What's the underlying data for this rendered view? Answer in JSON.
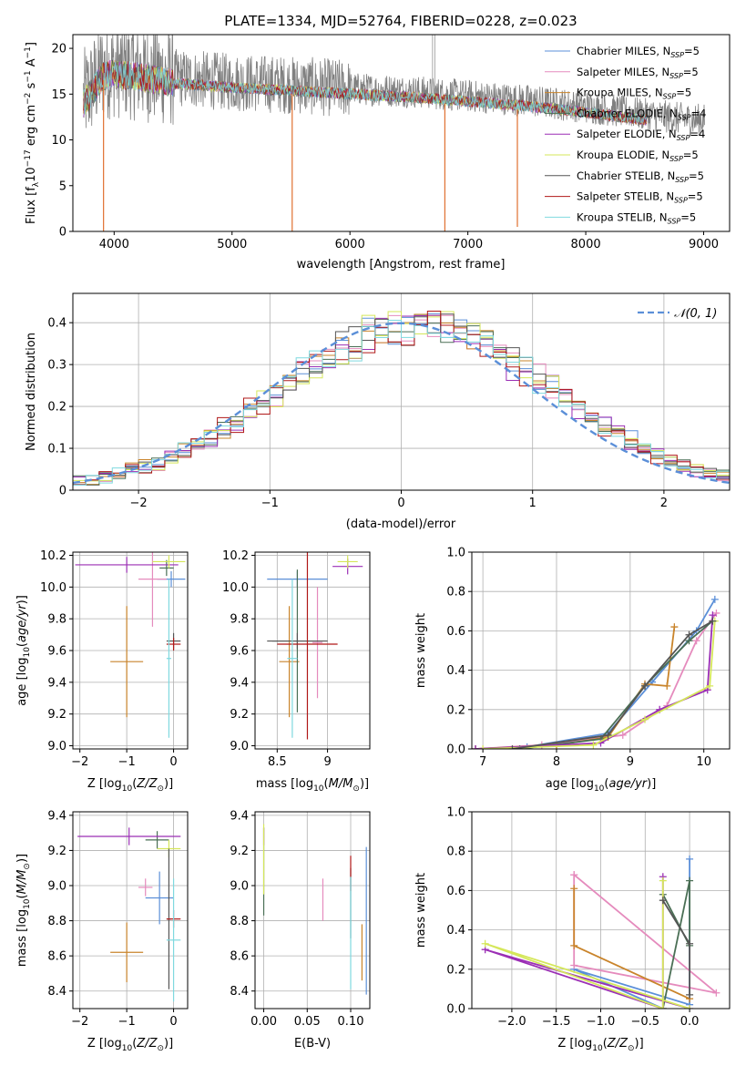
{
  "figure": {
    "title": "PLATE=1334, MJD=52764, FIBERID=0228, z=0.023",
    "models": [
      {
        "label": "Chabrier MILES, N",
        "sub": "SSP",
        "tail": "=5",
        "color": "#5b8fd8"
      },
      {
        "label": "Salpeter MILES, N",
        "sub": "SSP",
        "tail": "=5",
        "color": "#e58bbd"
      },
      {
        "label": "Kroupa MILES, N",
        "sub": "SSP",
        "tail": "=5",
        "color": "#c9842b"
      },
      {
        "label": "Chabrier ELODIE, N",
        "sub": "SSP",
        "tail": "=4",
        "color": "#4a6f55"
      },
      {
        "label": "Salpeter ELODIE, N",
        "sub": "SSP",
        "tail": "=4",
        "color": "#9b2fb5"
      },
      {
        "label": "Kroupa ELODIE, N",
        "sub": "SSP",
        "tail": "=5",
        "color": "#d5e75a"
      },
      {
        "label": "Chabrier STELIB, N",
        "sub": "SSP",
        "tail": "=5",
        "color": "#555555"
      },
      {
        "label": "Salpeter STELIB, N",
        "sub": "SSP",
        "tail": "=5",
        "color": "#b01818"
      },
      {
        "label": "Kroupa STELIB, N",
        "sub": "SSP",
        "tail": "=5",
        "color": "#7fd9df"
      }
    ]
  },
  "chart_data": [
    {
      "id": "spectrum",
      "type": "line",
      "xlabel": "wavelength [Angstrom, rest frame]",
      "ylabel_parts": [
        "Flux [f",
        "λ",
        "10",
        "−17",
        " erg cm",
        "−2",
        " s",
        "−1",
        " A",
        "−1",
        "]"
      ],
      "xlim": [
        3650,
        9220
      ],
      "ylim": [
        0,
        21.5
      ],
      "xticks": [
        4000,
        5000,
        6000,
        7000,
        8000,
        9000
      ],
      "yticks": [
        0,
        5,
        10,
        15,
        20
      ],
      "continuum": [
        [
          3740,
          14.5
        ],
        [
          3900,
          17.5
        ],
        [
          4000,
          17.8
        ],
        [
          4200,
          17.5
        ],
        [
          4500,
          16.8
        ],
        [
          4800,
          16.5
        ],
        [
          5000,
          16.3
        ],
        [
          5500,
          16.0
        ],
        [
          6000,
          15.6
        ],
        [
          6500,
          15.3
        ],
        [
          7000,
          14.8
        ],
        [
          7500,
          14.3
        ],
        [
          8000,
          13.6
        ],
        [
          8500,
          12.8
        ],
        [
          8900,
          12.2
        ]
      ],
      "data_range": [
        3740,
        9010
      ],
      "model_range": [
        3740,
        8520
      ],
      "spikes_down": [
        [
          3910,
          0
        ],
        [
          5510,
          0
        ],
        [
          6805,
          0
        ],
        [
          7420,
          0.5
        ]
      ],
      "spikes_up": [
        [
          6700,
          21.5
        ],
        [
          6720,
          21.5
        ]
      ]
    },
    {
      "id": "residuals",
      "type": "histogram",
      "xlabel": "(data-model)/error",
      "ylabel": "Normed distribution",
      "xlim": [
        -2.5,
        2.5
      ],
      "ylim": [
        0,
        0.47
      ],
      "xticks": [
        -2,
        -1,
        0,
        1,
        2
      ],
      "yticks": [
        0,
        0.1,
        0.2,
        0.3,
        0.4
      ],
      "bin_edges_range": [
        -2.5,
        2.5
      ],
      "n_bins": 50,
      "reference_curve": {
        "label": "𝒩(0, 1)",
        "mu": 0,
        "sigma": 1,
        "color": "#5b8fd8"
      }
    },
    {
      "id": "age_vs_Z",
      "type": "scatter",
      "xlabel": "Z [log10(Z/Z⊙)]",
      "ylabel": "age  [log10(age/yr)]",
      "xlim": [
        -2.15,
        0.3
      ],
      "ylim": [
        8.98,
        10.22
      ],
      "xticks": [
        -2,
        -1,
        0
      ],
      "yticks": [
        9.0,
        9.2,
        9.4,
        9.6,
        9.8,
        10.0,
        10.2
      ],
      "points": [
        {
          "m": 0,
          "x": -0.05,
          "y": 10.05,
          "xe": 0.3,
          "ye": 0.05
        },
        {
          "m": 1,
          "x": -0.45,
          "y": 10.05,
          "xe": 0.3,
          "ye": 0.3
        },
        {
          "m": 2,
          "x": -1.0,
          "y": 9.53,
          "xe": 0.35,
          "ye": 0.35
        },
        {
          "m": 3,
          "x": -0.15,
          "y": 10.12,
          "xe": 0.15,
          "ye": 0.05
        },
        {
          "m": 4,
          "x": -1.0,
          "y": 10.14,
          "xe": 1.1,
          "ye": 0.05
        },
        {
          "m": 5,
          "x": -0.1,
          "y": 10.16,
          "xe": 0.35,
          "ye": 0.04
        },
        {
          "m": 6,
          "x": 0.0,
          "y": 9.66,
          "xe": 0.15,
          "ye": 0.05
        },
        {
          "m": 7,
          "x": 0.0,
          "y": 9.64,
          "xe": 0.15,
          "ye": 0.04
        },
        {
          "m": 8,
          "x": -0.1,
          "y": 9.55,
          "xe": 0.05,
          "ye": 0.5
        }
      ]
    },
    {
      "id": "age_vs_mass",
      "type": "scatter",
      "xlabel": "mass [log10(M/M⊙)]",
      "xlim": [
        8.28,
        9.42
      ],
      "ylim": [
        8.98,
        10.22
      ],
      "xticks": [
        8.5,
        9.0
      ],
      "yticks": [
        9.0,
        9.2,
        9.4,
        9.6,
        9.8,
        10.0,
        10.2
      ],
      "points": [
        {
          "m": 0,
          "x": 8.7,
          "y": 10.05,
          "xe": 0.3,
          "ye": 0.05
        },
        {
          "m": 1,
          "x": 8.9,
          "y": 9.65,
          "xe": 0.05,
          "ye": 0.35
        },
        {
          "m": 2,
          "x": 8.62,
          "y": 9.53,
          "xe": 0.1,
          "ye": 0.35
        },
        {
          "m": 3,
          "x": 8.7,
          "y": 9.66,
          "xe": 0.25,
          "ye": 0.45
        },
        {
          "m": 4,
          "x": 9.2,
          "y": 10.13,
          "xe": 0.15,
          "ye": 0.05
        },
        {
          "m": 5,
          "x": 9.2,
          "y": 10.16,
          "xe": 0.1,
          "ye": 0.04
        },
        {
          "m": 6,
          "x": 8.7,
          "y": 9.66,
          "xe": 0.3,
          "ye": 0.05
        },
        {
          "m": 7,
          "x": 8.8,
          "y": 9.64,
          "xe": 0.3,
          "ye": 0.6
        },
        {
          "m": 8,
          "x": 8.65,
          "y": 9.55,
          "xe": 0.05,
          "ye": 0.5
        }
      ]
    },
    {
      "id": "weight_vs_age",
      "type": "line",
      "xlabel": "age  [log10(age/yr)]",
      "ylabel": "mass weight",
      "xlim": [
        6.85,
        10.35
      ],
      "ylim": [
        0,
        1.0
      ],
      "xticks": [
        7,
        8,
        9,
        10
      ],
      "yticks": [
        0.0,
        0.2,
        0.4,
        0.6,
        0.8,
        1.0
      ],
      "series": [
        {
          "m": 0,
          "points": [
            [
              6.9,
              0.0
            ],
            [
              7.6,
              0.01
            ],
            [
              8.7,
              0.08
            ],
            [
              9.3,
              0.34
            ],
            [
              9.9,
              0.6
            ],
            [
              10.15,
              0.76
            ]
          ]
        },
        {
          "m": 1,
          "points": [
            [
              6.9,
              0.0
            ],
            [
              7.8,
              0.02
            ],
            [
              8.9,
              0.07
            ],
            [
              9.5,
              0.22
            ],
            [
              9.9,
              0.55
            ],
            [
              10.17,
              0.69
            ]
          ]
        },
        {
          "m": 2,
          "points": [
            [
              6.9,
              0.0
            ],
            [
              8.0,
              0.02
            ],
            [
              8.7,
              0.06
            ],
            [
              9.2,
              0.33
            ],
            [
              9.5,
              0.32
            ],
            [
              9.6,
              0.62
            ]
          ]
        },
        {
          "m": 3,
          "points": [
            [
              7.5,
              0.0
            ],
            [
              8.6,
              0.05
            ],
            [
              9.2,
              0.32
            ],
            [
              9.8,
              0.55
            ],
            [
              10.12,
              0.65
            ]
          ]
        },
        {
          "m": 4,
          "points": [
            [
              6.9,
              0.0
            ],
            [
              8.6,
              0.03
            ],
            [
              9.4,
              0.2
            ],
            [
              10.05,
              0.3
            ],
            [
              10.12,
              0.68
            ]
          ]
        },
        {
          "m": 5,
          "points": [
            [
              7.0,
              0.0
            ],
            [
              8.5,
              0.02
            ],
            [
              9.2,
              0.15
            ],
            [
              10.08,
              0.32
            ],
            [
              10.15,
              0.65
            ]
          ]
        },
        {
          "m": 6,
          "points": [
            [
              7.4,
              0.0
            ],
            [
              8.7,
              0.07
            ],
            [
              9.2,
              0.32
            ],
            [
              9.8,
              0.58
            ],
            [
              10.12,
              0.65
            ]
          ]
        }
      ]
    },
    {
      "id": "mass_vs_Z",
      "type": "scatter",
      "xlabel": "Z [log10(Z/Z⊙)]",
      "ylabel": "mass [log10(M/M⊙)]",
      "xlim": [
        -2.15,
        0.3
      ],
      "ylim": [
        8.3,
        9.42
      ],
      "xticks": [
        -2,
        -1,
        0
      ],
      "yticks": [
        8.4,
        8.6,
        8.8,
        9.0,
        9.2,
        9.4
      ],
      "points": [
        {
          "m": 0,
          "x": -0.3,
          "y": 8.93,
          "xe": 0.3,
          "ye": 0.15
        },
        {
          "m": 1,
          "x": -0.6,
          "y": 8.99,
          "xe": 0.15,
          "ye": 0.05
        },
        {
          "m": 2,
          "x": -1.0,
          "y": 8.62,
          "xe": 0.35,
          "ye": 0.17
        },
        {
          "m": 3,
          "x": -0.35,
          "y": 9.26,
          "xe": 0.25,
          "ye": 0.05
        },
        {
          "m": 4,
          "x": -0.95,
          "y": 9.28,
          "xe": 1.1,
          "ye": 0.05
        },
        {
          "m": 5,
          "x": -0.1,
          "y": 9.21,
          "xe": 0.25,
          "ye": 0.05
        },
        {
          "m": 6,
          "x": -0.1,
          "y": 8.81,
          "xe": 0.05,
          "ye": 0.4
        },
        {
          "m": 7,
          "x": 0.0,
          "y": 8.81,
          "xe": 0.15,
          "ye": 0.05
        },
        {
          "m": 8,
          "x": 0.0,
          "y": 8.69,
          "xe": 0.15,
          "ye": 0.35
        }
      ]
    },
    {
      "id": "mass_vs_EBV",
      "type": "scatter",
      "xlabel": "E(B-V)",
      "xlim": [
        -0.01,
        0.122
      ],
      "ylim": [
        8.3,
        9.42
      ],
      "xticks": [
        0.0,
        0.05,
        0.1
      ],
      "xtick_labels": [
        "0.00",
        "0.05",
        "0.10"
      ],
      "yticks": [
        8.4,
        8.6,
        8.8,
        9.0,
        9.2,
        9.4
      ],
      "points": [
        {
          "m": 0,
          "x": 0.118,
          "y": 8.8,
          "xe": 0,
          "ye": 0.42
        },
        {
          "m": 1,
          "x": 0.068,
          "y": 8.92,
          "xe": 0,
          "ye": 0.12
        },
        {
          "m": 2,
          "x": 0.113,
          "y": 8.62,
          "xe": 0,
          "ye": 0.16
        },
        {
          "m": 3,
          "x": 0.0,
          "y": 9.08,
          "xe": 0,
          "ye": 0.25
        },
        {
          "m": 4,
          "x": 0.0,
          "y": 9.28,
          "xe": 0,
          "ye": 0.05
        },
        {
          "m": 5,
          "x": 0.0,
          "y": 9.15,
          "xe": 0,
          "ye": 0.2
        },
        {
          "m": 6,
          "x": 0.1,
          "y": 8.9,
          "xe": 0,
          "ye": 0.2
        },
        {
          "m": 7,
          "x": 0.1,
          "y": 9.07,
          "xe": 0,
          "ye": 0.1
        },
        {
          "m": 8,
          "x": 0.1,
          "y": 8.73,
          "xe": 0,
          "ye": 0.32
        }
      ]
    },
    {
      "id": "weight_vs_Z",
      "type": "line",
      "xlabel": "Z [log10(Z/Z⊙)]",
      "ylabel": "mass weight",
      "xlim": [
        -2.45,
        0.45
      ],
      "ylim": [
        0,
        1.0
      ],
      "xticks": [
        -2.0,
        -1.5,
        -1.0,
        -0.5,
        0.0
      ],
      "xtick_labels": [
        "−2.0",
        "−1.5",
        "−1.0",
        "−0.5",
        "0.0"
      ],
      "yticks": [
        0.0,
        0.2,
        0.4,
        0.6,
        0.8,
        1.0
      ],
      "series": [
        {
          "m": 0,
          "points": [
            [
              0.0,
              0.76
            ],
            [
              0.0,
              0.02
            ],
            [
              -1.3,
              0.2
            ],
            [
              -0.3,
              0.0
            ]
          ]
        },
        {
          "m": 1,
          "points": [
            [
              -1.3,
              0.68
            ],
            [
              0.3,
              0.08
            ],
            [
              -1.3,
              0.22
            ],
            [
              -1.3,
              0.68
            ]
          ]
        },
        {
          "m": 2,
          "points": [
            [
              -1.3,
              0.61
            ],
            [
              -1.3,
              0.32
            ],
            [
              0.0,
              0.05
            ]
          ]
        },
        {
          "m": 3,
          "points": [
            [
              -0.3,
              0.58
            ],
            [
              0.0,
              0.32
            ],
            [
              0.0,
              0.65
            ],
            [
              -0.3,
              0.0
            ]
          ]
        },
        {
          "m": 4,
          "points": [
            [
              -0.3,
              0.67
            ],
            [
              -0.3,
              0.0
            ],
            [
              -2.3,
              0.3
            ],
            [
              0.0,
              0.0
            ]
          ]
        },
        {
          "m": 5,
          "points": [
            [
              -0.3,
              0.65
            ],
            [
              -0.3,
              0.0
            ],
            [
              -2.3,
              0.33
            ],
            [
              0.0,
              0.0
            ]
          ]
        },
        {
          "m": 6,
          "points": [
            [
              -0.3,
              0.55
            ],
            [
              0.0,
              0.33
            ],
            [
              0.0,
              0.07
            ]
          ]
        }
      ]
    }
  ]
}
